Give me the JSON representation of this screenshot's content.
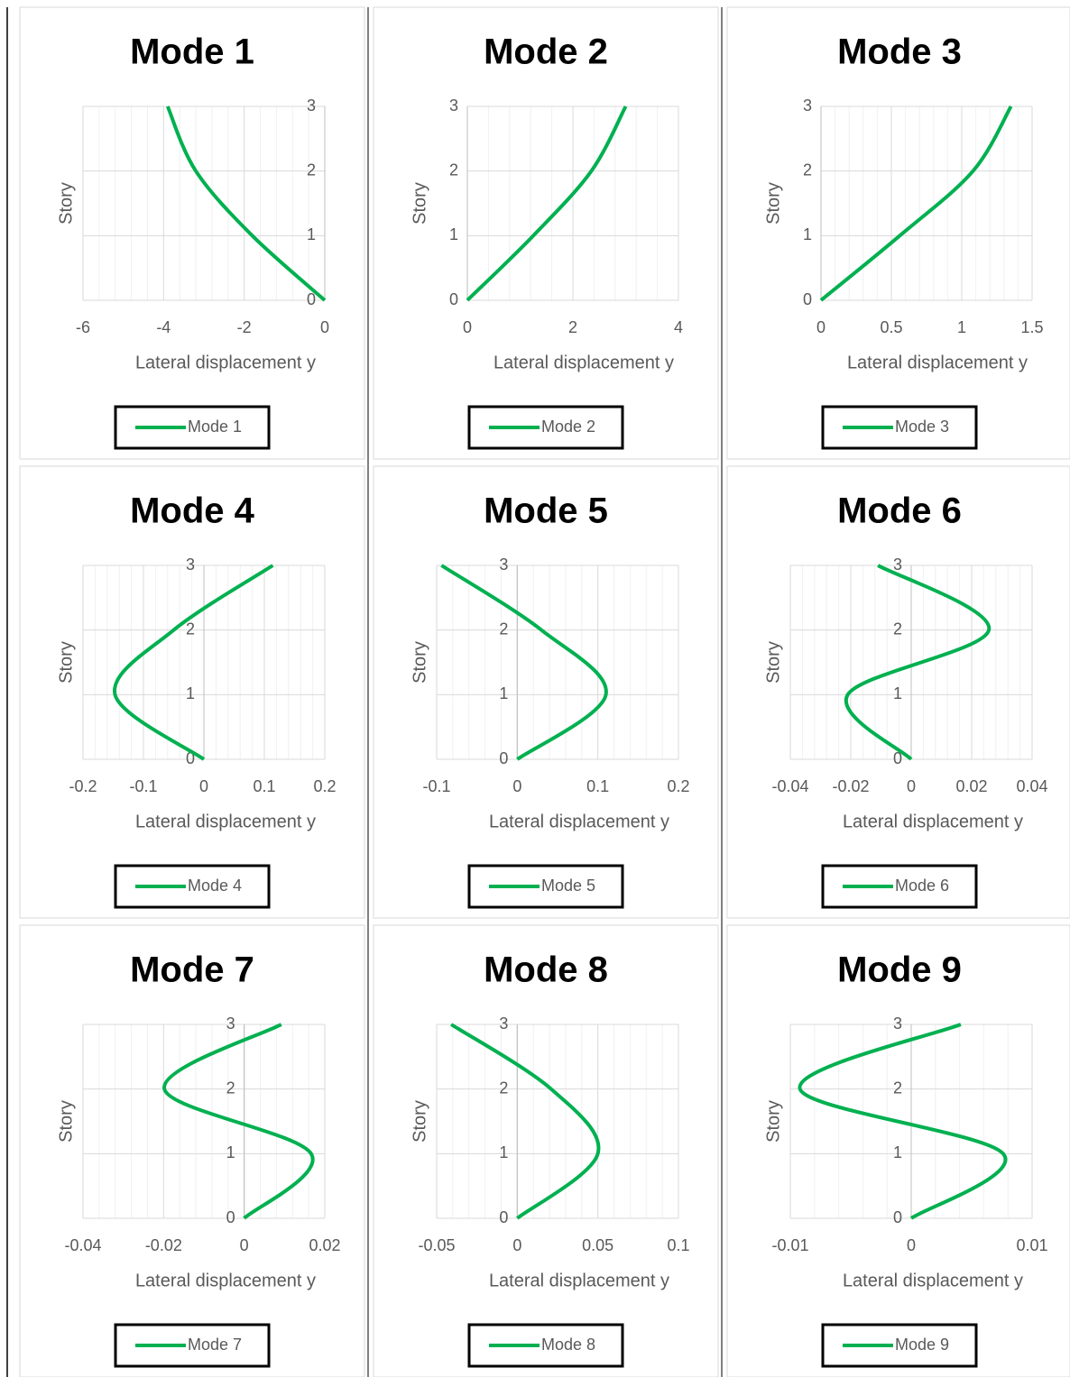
{
  "chart_data": [
    {
      "type": "line",
      "title": "Mode 1",
      "x_label": "Lateral displacement y",
      "y_label": "Story",
      "xlim": [
        -6,
        0
      ],
      "xticks": [
        -6,
        -4,
        -2,
        0
      ],
      "ylim": [
        0,
        3
      ],
      "yticks": [
        0,
        1,
        2,
        3
      ],
      "grid": true,
      "minor_grid": true,
      "legend": "bottom",
      "series": [
        {
          "name": "Mode 1",
          "color": "#00b050",
          "x": [
            0,
            -1.8,
            -3.2,
            -3.9
          ],
          "y": [
            0,
            1,
            2,
            3
          ]
        }
      ]
    },
    {
      "type": "line",
      "title": "Mode 2",
      "x_label": "Lateral displacement y",
      "y_label": "Story",
      "xlim": [
        0,
        4
      ],
      "xticks": [
        0,
        2,
        4
      ],
      "ylim": [
        0,
        3
      ],
      "yticks": [
        0,
        1,
        2,
        3
      ],
      "grid": true,
      "minor_grid": true,
      "legend": "bottom",
      "series": [
        {
          "name": "Mode 2",
          "color": "#00b050",
          "x": [
            0,
            1.25,
            2.35,
            3.0
          ],
          "y": [
            0,
            1,
            2,
            3
          ]
        }
      ]
    },
    {
      "type": "line",
      "title": "Mode 3",
      "x_label": "Lateral displacement y",
      "y_label": "Story",
      "xlim": [
        0,
        1.5
      ],
      "xticks": [
        0,
        0.5,
        1,
        1.5
      ],
      "ylim": [
        0,
        3
      ],
      "yticks": [
        0,
        1,
        2,
        3
      ],
      "grid": true,
      "minor_grid": true,
      "legend": "bottom",
      "series": [
        {
          "name": "Mode 3",
          "color": "#00b050",
          "x": [
            0,
            0.56,
            1.08,
            1.35
          ],
          "y": [
            0,
            1,
            2,
            3
          ]
        }
      ]
    },
    {
      "type": "line",
      "title": "Mode 4",
      "x_label": "Lateral displacement y",
      "y_label": "Story",
      "xlim": [
        -0.2,
        0.2
      ],
      "xticks": [
        -0.2,
        -0.1,
        0,
        0.1,
        0.2
      ],
      "ylim": [
        0,
        3
      ],
      "yticks": [
        0,
        1,
        2,
        3
      ],
      "grid": true,
      "minor_grid": true,
      "legend": "bottom",
      "series": [
        {
          "name": "Mode 4",
          "color": "#00b050",
          "x": [
            0,
            -0.147,
            -0.05,
            0.114
          ],
          "y": [
            0,
            1,
            2,
            3
          ]
        }
      ]
    },
    {
      "type": "line",
      "title": "Mode 5",
      "x_label": "Lateral displacement y",
      "y_label": "Story",
      "xlim": [
        -0.1,
        0.2
      ],
      "xticks": [
        -0.1,
        0,
        0.1,
        0.2
      ],
      "ylim": [
        0,
        3
      ],
      "yticks": [
        0,
        1,
        2,
        3
      ],
      "grid": true,
      "minor_grid": true,
      "legend": "bottom",
      "series": [
        {
          "name": "Mode 5",
          "color": "#00b050",
          "x": [
            0,
            0.11,
            0.03,
            -0.094
          ],
          "y": [
            0,
            1,
            2,
            3
          ]
        }
      ]
    },
    {
      "type": "line",
      "title": "Mode 6",
      "x_label": "Lateral displacement y",
      "y_label": "Story",
      "xlim": [
        -0.04,
        0.04
      ],
      "xticks": [
        -0.04,
        -0.02,
        0,
        0.02,
        0.04
      ],
      "ylim": [
        0,
        3
      ],
      "yticks": [
        0,
        1,
        2,
        3
      ],
      "grid": true,
      "minor_grid": true,
      "legend": "bottom",
      "series": [
        {
          "name": "Mode 6",
          "color": "#00b050",
          "x": [
            0,
            -0.021,
            0.0257,
            -0.011
          ],
          "y": [
            0,
            1,
            2,
            3
          ]
        }
      ]
    },
    {
      "type": "line",
      "title": "Mode 7",
      "x_label": "Lateral displacement y",
      "y_label": "Story",
      "xlim": [
        -0.04,
        0.02
      ],
      "xticks": [
        -0.04,
        -0.02,
        0,
        0.02
      ],
      "ylim": [
        0,
        3
      ],
      "yticks": [
        0,
        1,
        2,
        3
      ],
      "grid": true,
      "minor_grid": true,
      "legend": "bottom",
      "series": [
        {
          "name": "Mode 7",
          "color": "#00b050",
          "x": [
            0,
            0.0166,
            -0.0198,
            0.0092
          ],
          "y": [
            0,
            1,
            2,
            3
          ]
        }
      ]
    },
    {
      "type": "line",
      "title": "Mode 8",
      "x_label": "Lateral displacement y",
      "y_label": "Story",
      "xlim": [
        -0.05,
        0.1
      ],
      "xticks": [
        -0.05,
        0,
        0.05,
        0.1
      ],
      "ylim": [
        0,
        3
      ],
      "yticks": [
        0,
        1,
        2,
        3
      ],
      "grid": true,
      "minor_grid": true,
      "legend": "bottom",
      "series": [
        {
          "name": "Mode 8",
          "color": "#00b050",
          "x": [
            0,
            0.05,
            0.021,
            -0.041
          ],
          "y": [
            0,
            1,
            2,
            3
          ]
        }
      ]
    },
    {
      "type": "line",
      "title": "Mode 9",
      "x_label": "Lateral displacement y",
      "y_label": "Story",
      "xlim": [
        -0.01,
        0.01
      ],
      "xticks": [
        -0.01,
        0,
        0.01
      ],
      "ylim": [
        0,
        3
      ],
      "yticks": [
        0,
        1,
        2,
        3
      ],
      "grid": true,
      "minor_grid": true,
      "legend": "bottom",
      "series": [
        {
          "name": "Mode 9",
          "color": "#00b050",
          "x": [
            0,
            0.0076,
            -0.0092,
            0.0041
          ],
          "y": [
            0,
            1,
            2,
            3
          ]
        }
      ]
    }
  ]
}
